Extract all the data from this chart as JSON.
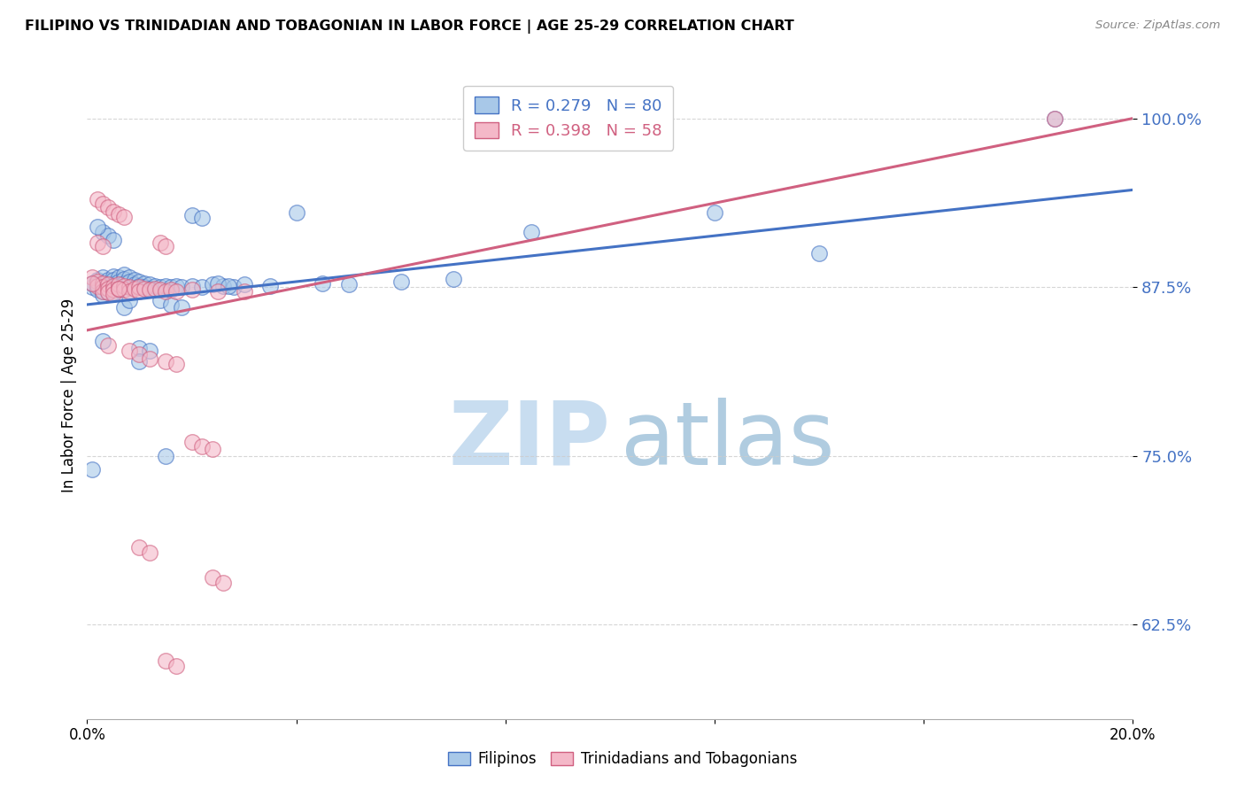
{
  "title": "FILIPINO VS TRINIDADIAN AND TOBAGONIAN IN LABOR FORCE | AGE 25-29 CORRELATION CHART",
  "source": "Source: ZipAtlas.com",
  "ylabel": "In Labor Force | Age 25-29",
  "yticks": [
    0.625,
    0.75,
    0.875,
    1.0
  ],
  "ytick_labels": [
    "62.5%",
    "75.0%",
    "87.5%",
    "100.0%"
  ],
  "xlim": [
    0.0,
    0.2
  ],
  "ylim": [
    0.555,
    1.035
  ],
  "blue_color": "#a8c8e8",
  "pink_color": "#f4b8c8",
  "line_blue": "#4472C4",
  "line_pink": "#d06080",
  "watermark_zip_color": "#c8ddf0",
  "watermark_atlas_color": "#b0cce0",
  "blue_scatter": [
    [
      0.001,
      0.875
    ],
    [
      0.001,
      0.878
    ],
    [
      0.002,
      0.88
    ],
    [
      0.002,
      0.877
    ],
    [
      0.002,
      0.873
    ],
    [
      0.003,
      0.882
    ],
    [
      0.003,
      0.878
    ],
    [
      0.003,
      0.875
    ],
    [
      0.003,
      0.872
    ],
    [
      0.003,
      0.869
    ],
    [
      0.004,
      0.88
    ],
    [
      0.004,
      0.877
    ],
    [
      0.004,
      0.874
    ],
    [
      0.004,
      0.871
    ],
    [
      0.005,
      0.883
    ],
    [
      0.005,
      0.88
    ],
    [
      0.005,
      0.877
    ],
    [
      0.005,
      0.874
    ],
    [
      0.005,
      0.871
    ],
    [
      0.006,
      0.882
    ],
    [
      0.006,
      0.879
    ],
    [
      0.006,
      0.876
    ],
    [
      0.006,
      0.873
    ],
    [
      0.007,
      0.884
    ],
    [
      0.007,
      0.881
    ],
    [
      0.007,
      0.878
    ],
    [
      0.008,
      0.882
    ],
    [
      0.008,
      0.879
    ],
    [
      0.009,
      0.88
    ],
    [
      0.009,
      0.877
    ],
    [
      0.01,
      0.879
    ],
    [
      0.01,
      0.876
    ],
    [
      0.011,
      0.878
    ],
    [
      0.011,
      0.875
    ],
    [
      0.012,
      0.877
    ],
    [
      0.012,
      0.874
    ],
    [
      0.013,
      0.876
    ],
    [
      0.014,
      0.875
    ],
    [
      0.015,
      0.876
    ],
    [
      0.016,
      0.875
    ],
    [
      0.017,
      0.876
    ],
    [
      0.018,
      0.875
    ],
    [
      0.02,
      0.876
    ],
    [
      0.022,
      0.875
    ],
    [
      0.024,
      0.877
    ],
    [
      0.026,
      0.876
    ],
    [
      0.028,
      0.875
    ],
    [
      0.003,
      0.916
    ],
    [
      0.004,
      0.913
    ],
    [
      0.005,
      0.91
    ],
    [
      0.02,
      0.928
    ],
    [
      0.022,
      0.926
    ],
    [
      0.025,
      0.878
    ],
    [
      0.027,
      0.876
    ],
    [
      0.03,
      0.877
    ],
    [
      0.014,
      0.865
    ],
    [
      0.016,
      0.862
    ],
    [
      0.018,
      0.86
    ],
    [
      0.04,
      0.93
    ],
    [
      0.003,
      0.835
    ],
    [
      0.01,
      0.83
    ],
    [
      0.012,
      0.828
    ],
    [
      0.002,
      0.92
    ],
    [
      0.007,
      0.86
    ],
    [
      0.015,
      0.75
    ],
    [
      0.001,
      0.74
    ],
    [
      0.085,
      0.916
    ],
    [
      0.12,
      0.93
    ],
    [
      0.14,
      0.9
    ],
    [
      0.185,
      1.0
    ],
    [
      0.05,
      0.877
    ],
    [
      0.06,
      0.879
    ],
    [
      0.07,
      0.881
    ],
    [
      0.035,
      0.876
    ],
    [
      0.045,
      0.878
    ],
    [
      0.008,
      0.865
    ],
    [
      0.01,
      0.82
    ]
  ],
  "pink_scatter": [
    [
      0.001,
      0.882
    ],
    [
      0.002,
      0.879
    ],
    [
      0.002,
      0.876
    ],
    [
      0.003,
      0.878
    ],
    [
      0.003,
      0.875
    ],
    [
      0.003,
      0.872
    ],
    [
      0.004,
      0.877
    ],
    [
      0.004,
      0.874
    ],
    [
      0.004,
      0.871
    ],
    [
      0.005,
      0.876
    ],
    [
      0.005,
      0.873
    ],
    [
      0.005,
      0.87
    ],
    [
      0.006,
      0.877
    ],
    [
      0.006,
      0.874
    ],
    [
      0.007,
      0.876
    ],
    [
      0.007,
      0.873
    ],
    [
      0.008,
      0.875
    ],
    [
      0.008,
      0.872
    ],
    [
      0.009,
      0.874
    ],
    [
      0.01,
      0.875
    ],
    [
      0.01,
      0.872
    ],
    [
      0.011,
      0.874
    ],
    [
      0.012,
      0.873
    ],
    [
      0.013,
      0.874
    ],
    [
      0.014,
      0.873
    ],
    [
      0.015,
      0.872
    ],
    [
      0.016,
      0.873
    ],
    [
      0.017,
      0.872
    ],
    [
      0.02,
      0.873
    ],
    [
      0.025,
      0.872
    ],
    [
      0.002,
      0.94
    ],
    [
      0.003,
      0.937
    ],
    [
      0.004,
      0.934
    ],
    [
      0.005,
      0.931
    ],
    [
      0.006,
      0.929
    ],
    [
      0.007,
      0.927
    ],
    [
      0.002,
      0.908
    ],
    [
      0.003,
      0.905
    ],
    [
      0.014,
      0.908
    ],
    [
      0.015,
      0.905
    ],
    [
      0.001,
      0.878
    ],
    [
      0.004,
      0.832
    ],
    [
      0.008,
      0.828
    ],
    [
      0.01,
      0.825
    ],
    [
      0.012,
      0.822
    ],
    [
      0.015,
      0.82
    ],
    [
      0.017,
      0.818
    ],
    [
      0.02,
      0.76
    ],
    [
      0.022,
      0.757
    ],
    [
      0.024,
      0.755
    ],
    [
      0.01,
      0.682
    ],
    [
      0.012,
      0.678
    ],
    [
      0.024,
      0.66
    ],
    [
      0.026,
      0.656
    ],
    [
      0.015,
      0.598
    ],
    [
      0.017,
      0.594
    ],
    [
      0.185,
      1.0
    ],
    [
      0.006,
      0.874
    ],
    [
      0.03,
      0.872
    ]
  ],
  "blue_trend_x": [
    0.0,
    0.2
  ],
  "blue_trend_y": [
    0.862,
    0.947
  ],
  "pink_trend_x": [
    0.0,
    0.2
  ],
  "pink_trend_y": [
    0.843,
    1.0
  ]
}
